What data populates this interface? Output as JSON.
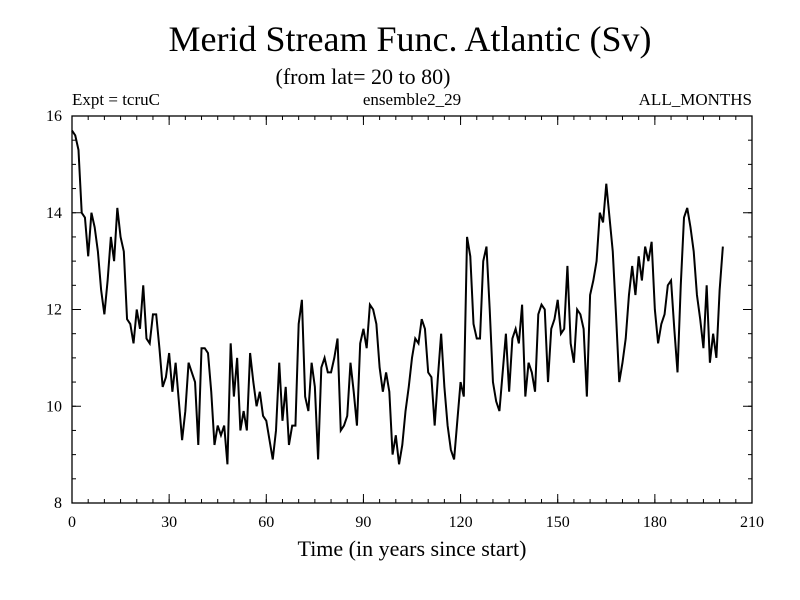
{
  "chart_data": {
    "type": "line",
    "title": "Merid Stream Func. Atlantic (Sv)",
    "subtitle": "(from lat= 20 to 80)",
    "annotations": {
      "left": "Expt = tcruC",
      "center": "ensemble2_29",
      "right": "ALL_MONTHS"
    },
    "xlabel": "Time (in years since start)",
    "ylabel": "",
    "xlim": [
      0,
      210
    ],
    "ylim": [
      8,
      16
    ],
    "xticks": [
      0,
      30,
      60,
      90,
      120,
      150,
      180,
      210
    ],
    "yticks": [
      8,
      10,
      12,
      14,
      16
    ],
    "x_minor_step": 5,
    "y_minor_step": 0.5,
    "line_color": "#000000",
    "x_start": 0,
    "x_step": 1,
    "series": [
      {
        "name": "ensemble2_29",
        "values": [
          15.7,
          15.6,
          15.3,
          14.0,
          13.9,
          13.1,
          14.0,
          13.7,
          13.2,
          12.4,
          11.9,
          12.6,
          13.5,
          13.0,
          14.1,
          13.5,
          13.2,
          11.8,
          11.7,
          11.3,
          12.0,
          11.6,
          12.5,
          11.4,
          11.3,
          11.9,
          11.9,
          11.2,
          10.4,
          10.6,
          11.1,
          10.3,
          10.9,
          10.1,
          9.3,
          9.9,
          10.9,
          10.7,
          10.5,
          9.2,
          11.2,
          11.2,
          11.1,
          10.3,
          9.2,
          9.6,
          9.4,
          9.6,
          8.8,
          11.3,
          10.2,
          11.0,
          9.5,
          9.9,
          9.5,
          11.1,
          10.5,
          10.0,
          10.3,
          9.8,
          9.7,
          9.3,
          8.9,
          9.5,
          10.9,
          9.7,
          10.4,
          9.2,
          9.6,
          9.6,
          11.7,
          12.2,
          10.2,
          9.9,
          10.9,
          10.4,
          8.9,
          10.8,
          11.0,
          10.7,
          10.7,
          11.0,
          11.4,
          9.5,
          9.6,
          9.8,
          10.9,
          10.3,
          9.6,
          11.3,
          11.6,
          11.2,
          12.1,
          12.0,
          11.7,
          10.8,
          10.3,
          10.7,
          10.3,
          9.0,
          9.4,
          8.8,
          9.2,
          9.9,
          10.4,
          11.0,
          11.4,
          11.3,
          11.8,
          11.6,
          10.7,
          10.6,
          9.6,
          10.6,
          11.5,
          10.4,
          9.6,
          9.1,
          8.9,
          9.7,
          10.5,
          10.2,
          13.5,
          13.1,
          11.7,
          11.4,
          11.4,
          13.0,
          13.3,
          12.0,
          10.5,
          10.1,
          9.9,
          10.7,
          11.5,
          10.3,
          11.4,
          11.6,
          11.3,
          12.1,
          10.2,
          10.9,
          10.7,
          10.3,
          11.9,
          12.1,
          12.0,
          10.5,
          11.6,
          11.8,
          12.2,
          11.5,
          11.6,
          12.9,
          11.3,
          10.9,
          12.0,
          11.9,
          11.6,
          10.2,
          12.3,
          12.6,
          13.0,
          14.0,
          13.8,
          14.6,
          13.9,
          13.2,
          11.9,
          10.5,
          10.9,
          11.4,
          12.3,
          12.9,
          12.3,
          13.1,
          12.6,
          13.3,
          13.0,
          13.4,
          12.0,
          11.3,
          11.7,
          11.9,
          12.5,
          12.6,
          11.6,
          10.7,
          12.5,
          13.9,
          14.1,
          13.7,
          13.2,
          12.3,
          11.8,
          11.2,
          12.5,
          10.9,
          11.5,
          11.0,
          12.4,
          13.3
        ]
      }
    ]
  }
}
